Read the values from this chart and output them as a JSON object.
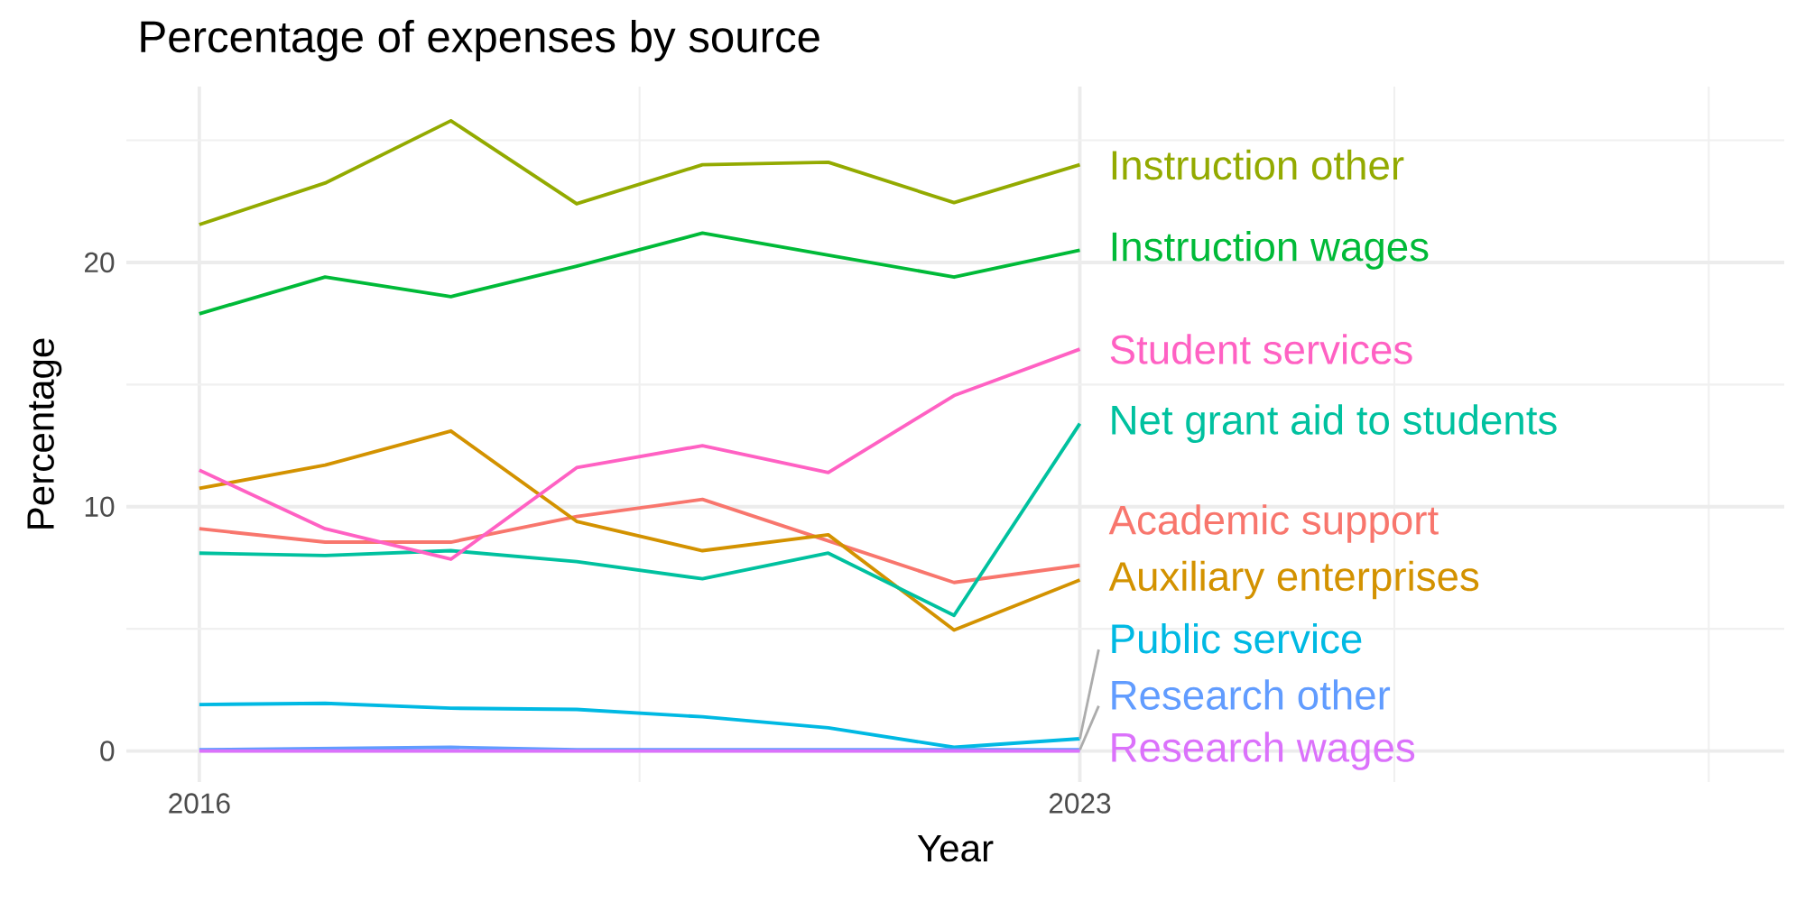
{
  "chart_data": {
    "type": "line",
    "title": "Percentage of expenses by source",
    "xlabel": "Year",
    "ylabel": "Percentage",
    "x": [
      2016,
      2017,
      2018,
      2019,
      2020,
      2021,
      2022,
      2023
    ],
    "xlim": [
      2015.42,
      2028.6
    ],
    "xticks": [
      2016,
      2023,
      {
        "value": 2019.5,
        "label": null
      },
      {
        "value": 2025.5,
        "label": null
      },
      {
        "value": 2028,
        "label": null
      }
    ],
    "ylim": [
      -1.27,
      27.2
    ],
    "yticks": [
      0,
      10,
      20,
      {
        "value": 5,
        "label": null
      },
      {
        "value": 15,
        "label": null
      },
      {
        "value": 25,
        "label": null
      }
    ],
    "grid": true,
    "series": [
      {
        "name": "Academic support",
        "color": "#F8766D",
        "values": [
          9.1,
          8.55,
          8.55,
          9.6,
          10.3,
          8.6,
          6.9,
          7.6
        ]
      },
      {
        "name": "Auxiliary enterprises",
        "color": "#D39200",
        "values": [
          10.75,
          11.7,
          13.1,
          9.4,
          8.2,
          8.85,
          4.95,
          7.0
        ]
      },
      {
        "name": "Instruction other",
        "color": "#93AA00",
        "values": [
          21.55,
          23.25,
          25.8,
          22.4,
          24.0,
          24.1,
          22.45,
          24.0
        ]
      },
      {
        "name": "Instruction wages",
        "color": "#00BA38",
        "values": [
          17.9,
          19.4,
          18.6,
          19.85,
          21.2,
          20.3,
          19.4,
          20.5
        ]
      },
      {
        "name": "Net grant aid to students",
        "color": "#00C19F",
        "values": [
          8.1,
          8.0,
          8.2,
          7.75,
          7.05,
          8.1,
          5.55,
          13.4
        ]
      },
      {
        "name": "Public service",
        "color": "#00B9E3",
        "values": [
          1.9,
          1.95,
          1.75,
          1.7,
          1.4,
          0.95,
          0.15,
          0.5
        ]
      },
      {
        "name": "Research other",
        "color": "#619CFF",
        "values": [
          0.05,
          0.1,
          0.15,
          0.05,
          0.05,
          0.05,
          0.05,
          0.05
        ]
      },
      {
        "name": "Research wages",
        "color": "#DB72FB",
        "values": [
          0,
          0,
          0,
          0,
          0,
          0,
          0,
          0
        ]
      },
      {
        "name": "Student services",
        "color": "#FF61C3",
        "values": [
          11.5,
          9.1,
          7.85,
          11.6,
          12.5,
          11.4,
          14.55,
          16.45
        ]
      }
    ]
  }
}
